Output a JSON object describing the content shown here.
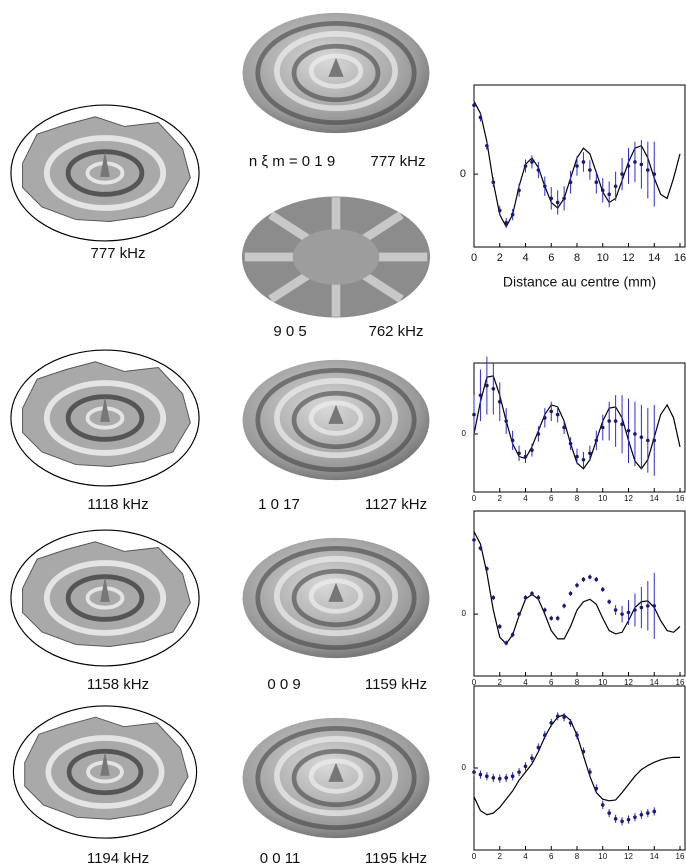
{
  "figure": {
    "measured": [
      "777 kHz",
      "1118 kHz",
      "1158 kHz",
      "1194 kHz"
    ],
    "modes": [
      {
        "label": "n ξ m = 0 1 9",
        "frequency": "777 kHz"
      },
      {
        "label": "9 0 5",
        "frequency": "762 kHz"
      },
      {
        "label": "1 0 17",
        "frequency": "1127 kHz"
      },
      {
        "label": "0 0 9",
        "frequency": "1159 kHz"
      },
      {
        "label": "0 0 11",
        "frequency": "1195 kHz"
      }
    ]
  },
  "chart_data": [
    {
      "type": "line",
      "xlabel": "Distance au centre (mm)",
      "xlim": [
        0,
        16
      ],
      "ylim": [
        -0.9,
        1.1
      ],
      "xticks": [
        0,
        2,
        4,
        6,
        8,
        10,
        12,
        14,
        16
      ],
      "yticks": [
        0
      ],
      "series": [
        {
          "color": "#000000",
          "x": [
            0,
            0.5,
            1,
            1.5,
            2,
            2.5,
            3,
            3.5,
            4,
            4.5,
            5,
            5.5,
            6,
            6.5,
            7,
            7.5,
            8,
            8.5,
            9,
            9.5,
            10,
            10.5,
            11,
            11.5,
            12,
            12.5,
            13,
            13.5,
            14,
            14.5,
            15,
            15.5,
            16
          ],
          "values": [
            0.9,
            0.75,
            0.4,
            -0.1,
            -0.5,
            -0.65,
            -0.5,
            -0.15,
            0.12,
            0.2,
            0.08,
            -0.15,
            -0.35,
            -0.42,
            -0.3,
            -0.05,
            0.2,
            0.32,
            0.25,
            0.02,
            -0.22,
            -0.35,
            -0.3,
            -0.08,
            0.15,
            0.32,
            0.35,
            0.2,
            -0.05,
            -0.25,
            -0.3,
            -0.05,
            0.25
          ]
        },
        {
          "color": "#1a1a6e",
          "error_color": "#2b2bd9",
          "x": [
            0,
            0.5,
            1,
            1.5,
            2,
            2.5,
            3,
            3.5,
            4,
            4.5,
            5,
            5.5,
            6,
            6.5,
            7,
            7.5,
            8,
            8.5,
            9,
            9.5,
            10,
            10.5,
            11,
            11.5,
            12,
            12.5,
            13,
            13.5,
            14
          ],
          "values": [
            0.85,
            0.7,
            0.35,
            -0.1,
            -0.45,
            -0.6,
            -0.5,
            -0.2,
            0.1,
            0.15,
            0.05,
            -0.15,
            -0.3,
            -0.35,
            -0.3,
            -0.1,
            0.1,
            0.15,
            0.05,
            -0.1,
            -0.2,
            -0.25,
            -0.15,
            0.0,
            0.1,
            0.15,
            0.12,
            0.05,
            0.0
          ],
          "errors": [
            0.05,
            0.05,
            0.05,
            0.06,
            0.06,
            0.06,
            0.07,
            0.08,
            0.08,
            0.08,
            0.1,
            0.12,
            0.14,
            0.15,
            0.15,
            0.14,
            0.12,
            0.12,
            0.12,
            0.14,
            0.15,
            0.16,
            0.18,
            0.2,
            0.22,
            0.25,
            0.3,
            0.35,
            0.4
          ]
        }
      ]
    },
    {
      "type": "line",
      "xlim": [
        0,
        16
      ],
      "ylim": [
        -0.9,
        1.1
      ],
      "xticks": [
        0,
        2,
        4,
        6,
        8,
        10,
        12,
        14,
        16
      ],
      "yticks": [
        0
      ],
      "series": [
        {
          "color": "#000000",
          "x": [
            0,
            0.5,
            1,
            1.5,
            2,
            2.5,
            3,
            3.5,
            4,
            4.5,
            5,
            5.5,
            6,
            6.5,
            7,
            7.5,
            8,
            8.5,
            9,
            9.5,
            10,
            10.5,
            11,
            11.5,
            12,
            12.5,
            13,
            13.5,
            14,
            14.5,
            15,
            15.5,
            16
          ],
          "values": [
            0,
            0.5,
            0.88,
            0.9,
            0.6,
            0.2,
            -0.15,
            -0.35,
            -0.38,
            -0.2,
            0.05,
            0.3,
            0.45,
            0.42,
            0.2,
            -0.15,
            -0.45,
            -0.54,
            -0.4,
            -0.1,
            0.2,
            0.4,
            0.42,
            0.25,
            -0.1,
            -0.42,
            -0.54,
            -0.4,
            -0.05,
            0.3,
            0.45,
            0.25,
            -0.2
          ]
        },
        {
          "color": "#1a1a6e",
          "error_color": "#2b2bd9",
          "x": [
            0,
            0.5,
            1,
            1.5,
            2,
            2.5,
            3,
            3.5,
            4,
            4.5,
            5,
            5.5,
            6,
            6.5,
            7,
            7.5,
            8,
            8.5,
            9,
            9.5,
            10,
            10.5,
            11,
            11.5,
            12,
            12.5,
            13,
            13.5,
            14
          ],
          "values": [
            0.3,
            0.6,
            0.75,
            0.7,
            0.5,
            0.2,
            -0.1,
            -0.3,
            -0.35,
            -0.25,
            0.0,
            0.25,
            0.35,
            0.3,
            0.1,
            -0.15,
            -0.35,
            -0.4,
            -0.3,
            -0.1,
            0.1,
            0.2,
            0.2,
            0.15,
            0.05,
            0,
            -0.05,
            -0.1,
            -0.1
          ],
          "errors": [
            0.3,
            0.4,
            0.45,
            0.4,
            0.3,
            0.2,
            0.15,
            0.12,
            0.1,
            0.1,
            0.12,
            0.15,
            0.15,
            0.12,
            0.1,
            0.1,
            0.12,
            0.12,
            0.12,
            0.15,
            0.2,
            0.3,
            0.4,
            0.45,
            0.5,
            0.5,
            0.5,
            0.5,
            0.55
          ]
        }
      ]
    },
    {
      "type": "line",
      "xlim": [
        0,
        16
      ],
      "ylim": [
        -0.75,
        1.25
      ],
      "xticks": [
        0,
        2,
        4,
        6,
        8,
        10,
        12,
        14,
        16
      ],
      "yticks": [
        0
      ],
      "series": [
        {
          "color": "#000000",
          "x": [
            0,
            0.5,
            1,
            1.5,
            2,
            2.5,
            3,
            3.5,
            4,
            4.5,
            5,
            5.5,
            6,
            6.5,
            7,
            7.5,
            8,
            8.5,
            9,
            9.5,
            10,
            10.5,
            11,
            11.5,
            12,
            12.5,
            13,
            13.5,
            14,
            14.5,
            15,
            15.5,
            16
          ],
          "values": [
            1.0,
            0.85,
            0.5,
            0.05,
            -0.28,
            -0.36,
            -0.25,
            -0.02,
            0.18,
            0.24,
            0.18,
            0.0,
            -0.2,
            -0.3,
            -0.3,
            -0.15,
            0.05,
            0.15,
            0.18,
            0.12,
            -0.05,
            -0.2,
            -0.24,
            -0.22,
            -0.08,
            0.08,
            0.15,
            0.16,
            0.08,
            -0.08,
            -0.2,
            -0.22,
            -0.15
          ]
        },
        {
          "color": "#1a1a6e",
          "error_color": "#2b2bd9",
          "x": [
            0,
            0.5,
            1,
            1.5,
            2,
            2.5,
            3,
            3.5,
            4,
            4.5,
            5,
            5.5,
            6,
            6.5,
            7,
            7.5,
            8,
            8.5,
            9,
            9.5,
            10,
            10.5,
            11,
            11.5,
            12,
            12.5,
            13,
            13.5,
            14
          ],
          "values": [
            0.9,
            0.8,
            0.55,
            0.2,
            -0.15,
            -0.35,
            -0.25,
            0.0,
            0.2,
            0.25,
            0.2,
            0.05,
            -0.05,
            -0.05,
            0.1,
            0.25,
            0.35,
            0.42,
            0.45,
            0.42,
            0.3,
            0.15,
            0.05,
            0.0,
            0.02,
            0.05,
            0.08,
            0.1,
            0.1
          ],
          "errors": [
            0.03,
            0.03,
            0.03,
            0.03,
            0.03,
            0.03,
            0.03,
            0.03,
            0.03,
            0.03,
            0.03,
            0.03,
            0.03,
            0.03,
            0.03,
            0.03,
            0.03,
            0.03,
            0.03,
            0.03,
            0.03,
            0.03,
            0.06,
            0.1,
            0.15,
            0.2,
            0.25,
            0.3,
            0.4
          ]
        }
      ]
    },
    {
      "type": "line",
      "xlim": [
        0,
        16
      ],
      "ylim": [
        -1,
        1
      ],
      "xticks": [
        0,
        2,
        4,
        6,
        8,
        10,
        12,
        14,
        16
      ],
      "yticks": [
        0
      ],
      "series": [
        {
          "color": "#000000",
          "x": [
            0,
            0.5,
            1,
            1.5,
            2,
            2.5,
            3,
            3.5,
            4,
            4.5,
            5,
            5.5,
            6,
            6.5,
            7,
            7.5,
            8,
            8.5,
            9,
            9.5,
            10,
            10.5,
            11,
            11.5,
            12,
            12.5,
            13,
            13.5,
            14,
            14.5,
            15,
            15.5,
            16
          ],
          "values": [
            -0.35,
            -0.52,
            -0.57,
            -0.55,
            -0.48,
            -0.38,
            -0.28,
            -0.15,
            -0.05,
            0.05,
            0.2,
            0.38,
            0.52,
            0.62,
            0.65,
            0.58,
            0.4,
            0.15,
            -0.1,
            -0.3,
            -0.38,
            -0.4,
            -0.39,
            -0.3,
            -0.2,
            -0.1,
            -0.02,
            0.03,
            0.07,
            0.1,
            0.12,
            0.13,
            0.13
          ]
        },
        {
          "color": "#1a1a6e",
          "error_color": "#2b2bd9",
          "x": [
            0,
            0.5,
            1,
            1.5,
            2,
            2.5,
            3,
            3.5,
            4,
            4.5,
            5,
            5.5,
            6,
            6.5,
            7,
            7.5,
            8,
            8.5,
            9,
            9.5,
            10,
            10.5,
            11,
            11.5,
            12,
            12.5,
            13,
            13.5,
            14
          ],
          "values": [
            -0.05,
            -0.08,
            -0.1,
            -0.12,
            -0.13,
            -0.12,
            -0.1,
            -0.05,
            0.02,
            0.12,
            0.25,
            0.4,
            0.55,
            0.63,
            0.62,
            0.55,
            0.4,
            0.2,
            -0.05,
            -0.25,
            -0.45,
            -0.55,
            -0.62,
            -0.65,
            -0.63,
            -0.6,
            -0.57,
            -0.55,
            -0.53
          ],
          "errors": [
            0.05,
            0.05,
            0.05,
            0.05,
            0.05,
            0.05,
            0.05,
            0.05,
            0.05,
            0.05,
            0.05,
            0.05,
            0.05,
            0.05,
            0.05,
            0.05,
            0.05,
            0.05,
            0.05,
            0.05,
            0.05,
            0.05,
            0.05,
            0.05,
            0.05,
            0.05,
            0.05,
            0.05,
            0.05
          ]
        }
      ]
    }
  ]
}
